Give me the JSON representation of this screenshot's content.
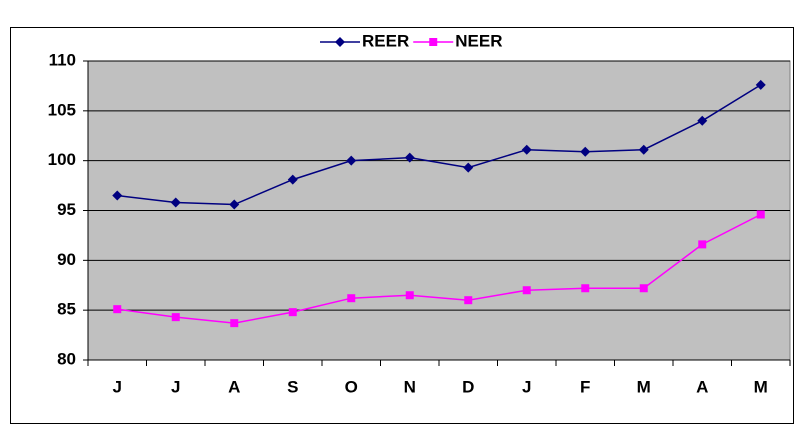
{
  "chart_data": {
    "type": "line",
    "categories": [
      "J",
      "J",
      "A",
      "S",
      "O",
      "N",
      "D",
      "J",
      "F",
      "M",
      "A",
      "M"
    ],
    "series": [
      {
        "name": "REER",
        "color": "#000080",
        "marker": "diamond",
        "values": [
          96.5,
          95.8,
          95.6,
          98.1,
          100,
          100.3,
          99.3,
          101.1,
          100.9,
          101.1,
          104,
          107.6
        ]
      },
      {
        "name": "NEER",
        "color": "#ff00ff",
        "marker": "square",
        "values": [
          85.1,
          84.3,
          83.7,
          84.8,
          86.2,
          86.5,
          86,
          87,
          87.2,
          87.2,
          91.6,
          94.6
        ]
      }
    ],
    "ylim": [
      80,
      110
    ],
    "yticks": [
      80,
      85,
      90,
      95,
      100,
      105,
      110
    ],
    "grid": true,
    "legend": "top"
  }
}
